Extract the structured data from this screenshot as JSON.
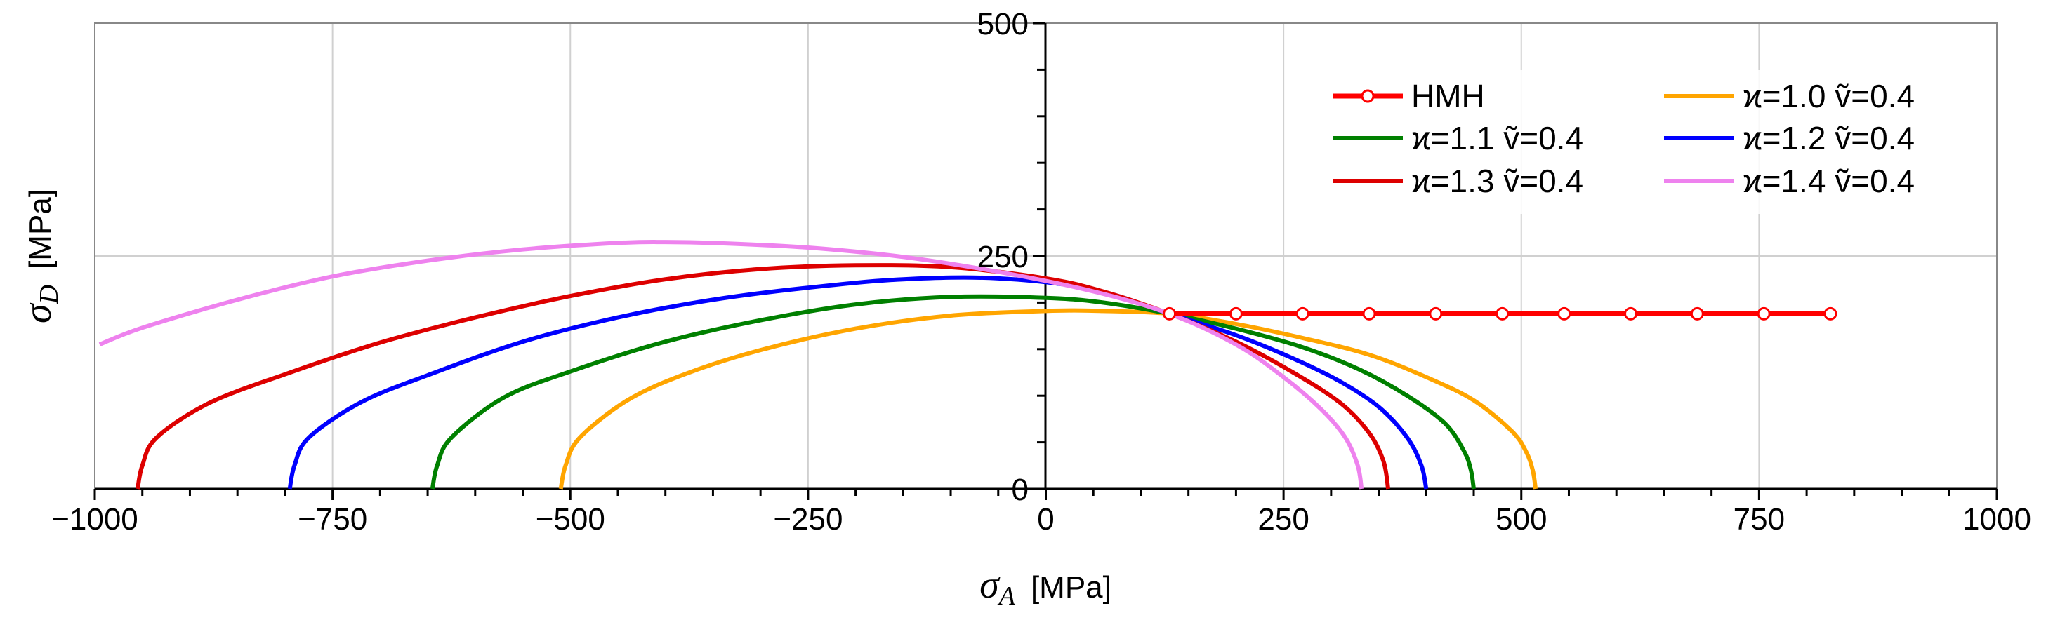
{
  "chart_data": {
    "type": "line",
    "title": "",
    "xlabel": {
      "symbol": "σ",
      "subscript": "A",
      "unit": "[MPa]"
    },
    "ylabel": {
      "symbol": "σ",
      "subscript": "D",
      "unit": "[MPa]"
    },
    "xlim": [
      -1000,
      1000
    ],
    "ylim": [
      0,
      500
    ],
    "xticks": [
      -1000,
      -750,
      -500,
      -250,
      0,
      250,
      500,
      750,
      1000
    ],
    "xtick_labels": [
      "−1000",
      "−750",
      "−500",
      "−250",
      "0",
      "250",
      "500",
      "750",
      "1000"
    ],
    "yticks": [
      0,
      250,
      500
    ],
    "ytick_labels": [
      "0",
      "250",
      "500"
    ],
    "grid": true,
    "legend_position": "top-right",
    "series": [
      {
        "name": "HMH",
        "label": "HMH",
        "color": "#ff0000",
        "marker": "circle",
        "x": [
          130,
          200,
          270,
          340,
          410,
          480,
          545,
          615,
          685,
          755,
          825
        ],
        "y": [
          188,
          188,
          188,
          188,
          188,
          188,
          188,
          188,
          188,
          188,
          188
        ]
      },
      {
        "name": "k1.0",
        "label": "ϰ=1.0  ṽ=0.4",
        "color": "#ffa500",
        "x": [
          -510,
          -505,
          -490,
          -440,
          -380,
          -300,
          -200,
          -100,
          0,
          60,
          130,
          200,
          270,
          340,
          400,
          450,
          490,
          505,
          512,
          515
        ],
        "y": [
          0,
          25,
          55,
          95,
          123,
          149,
          172,
          186,
          191,
          191,
          188,
          177,
          162,
          144,
          120,
          95,
          62,
          40,
          20,
          0
        ]
      },
      {
        "name": "k1.1",
        "label": "ϰ=1.1  ṽ=0.4",
        "color": "#008000",
        "x": [
          -645,
          -640,
          -625,
          -570,
          -500,
          -400,
          -300,
          -200,
          -100,
          0,
          60,
          130,
          200,
          270,
          330,
          380,
          420,
          440,
          447,
          450
        ],
        "y": [
          0,
          25,
          55,
          98,
          126,
          158,
          181,
          198,
          206,
          205,
          200,
          188,
          172,
          152,
          128,
          100,
          70,
          40,
          20,
          0
        ]
      },
      {
        "name": "k1.2",
        "label": "ϰ=1.2  ṽ=0.4",
        "color": "#0000ff",
        "x": [
          -795,
          -790,
          -775,
          -720,
          -650,
          -550,
          -450,
          -350,
          -250,
          -150,
          -50,
          50,
          130,
          200,
          260,
          310,
          350,
          380,
          395,
          400
        ],
        "y": [
          0,
          25,
          55,
          93,
          122,
          158,
          184,
          203,
          216,
          225,
          226,
          214,
          188,
          165,
          140,
          115,
          88,
          55,
          25,
          0
        ]
      },
      {
        "name": "k1.3",
        "label": "ϰ=1.3  ṽ=0.4",
        "color": "#dd0000",
        "x": [
          -955,
          -950,
          -935,
          -880,
          -800,
          -700,
          -600,
          -500,
          -400,
          -300,
          -200,
          -100,
          0,
          60,
          130,
          200,
          260,
          310,
          340,
          355,
          360
        ],
        "y": [
          0,
          25,
          55,
          92,
          123,
          157,
          184,
          207,
          225,
          236,
          240,
          238,
          226,
          212,
          188,
          158,
          125,
          92,
          60,
          30,
          0
        ]
      },
      {
        "name": "k1.4",
        "label": "ϰ=1.4  ṽ=0.4",
        "color": "#ee82ee",
        "x": [
          -995,
          -950,
          -850,
          -750,
          -650,
          -550,
          -450,
          -400,
          -350,
          -250,
          -150,
          -50,
          50,
          130,
          200,
          250,
          290,
          315,
          328,
          332
        ],
        "y": [
          155,
          173,
          203,
          228,
          245,
          257,
          264,
          265,
          264,
          259,
          249,
          233,
          212,
          188,
          155,
          120,
          85,
          55,
          25,
          0
        ]
      }
    ]
  }
}
